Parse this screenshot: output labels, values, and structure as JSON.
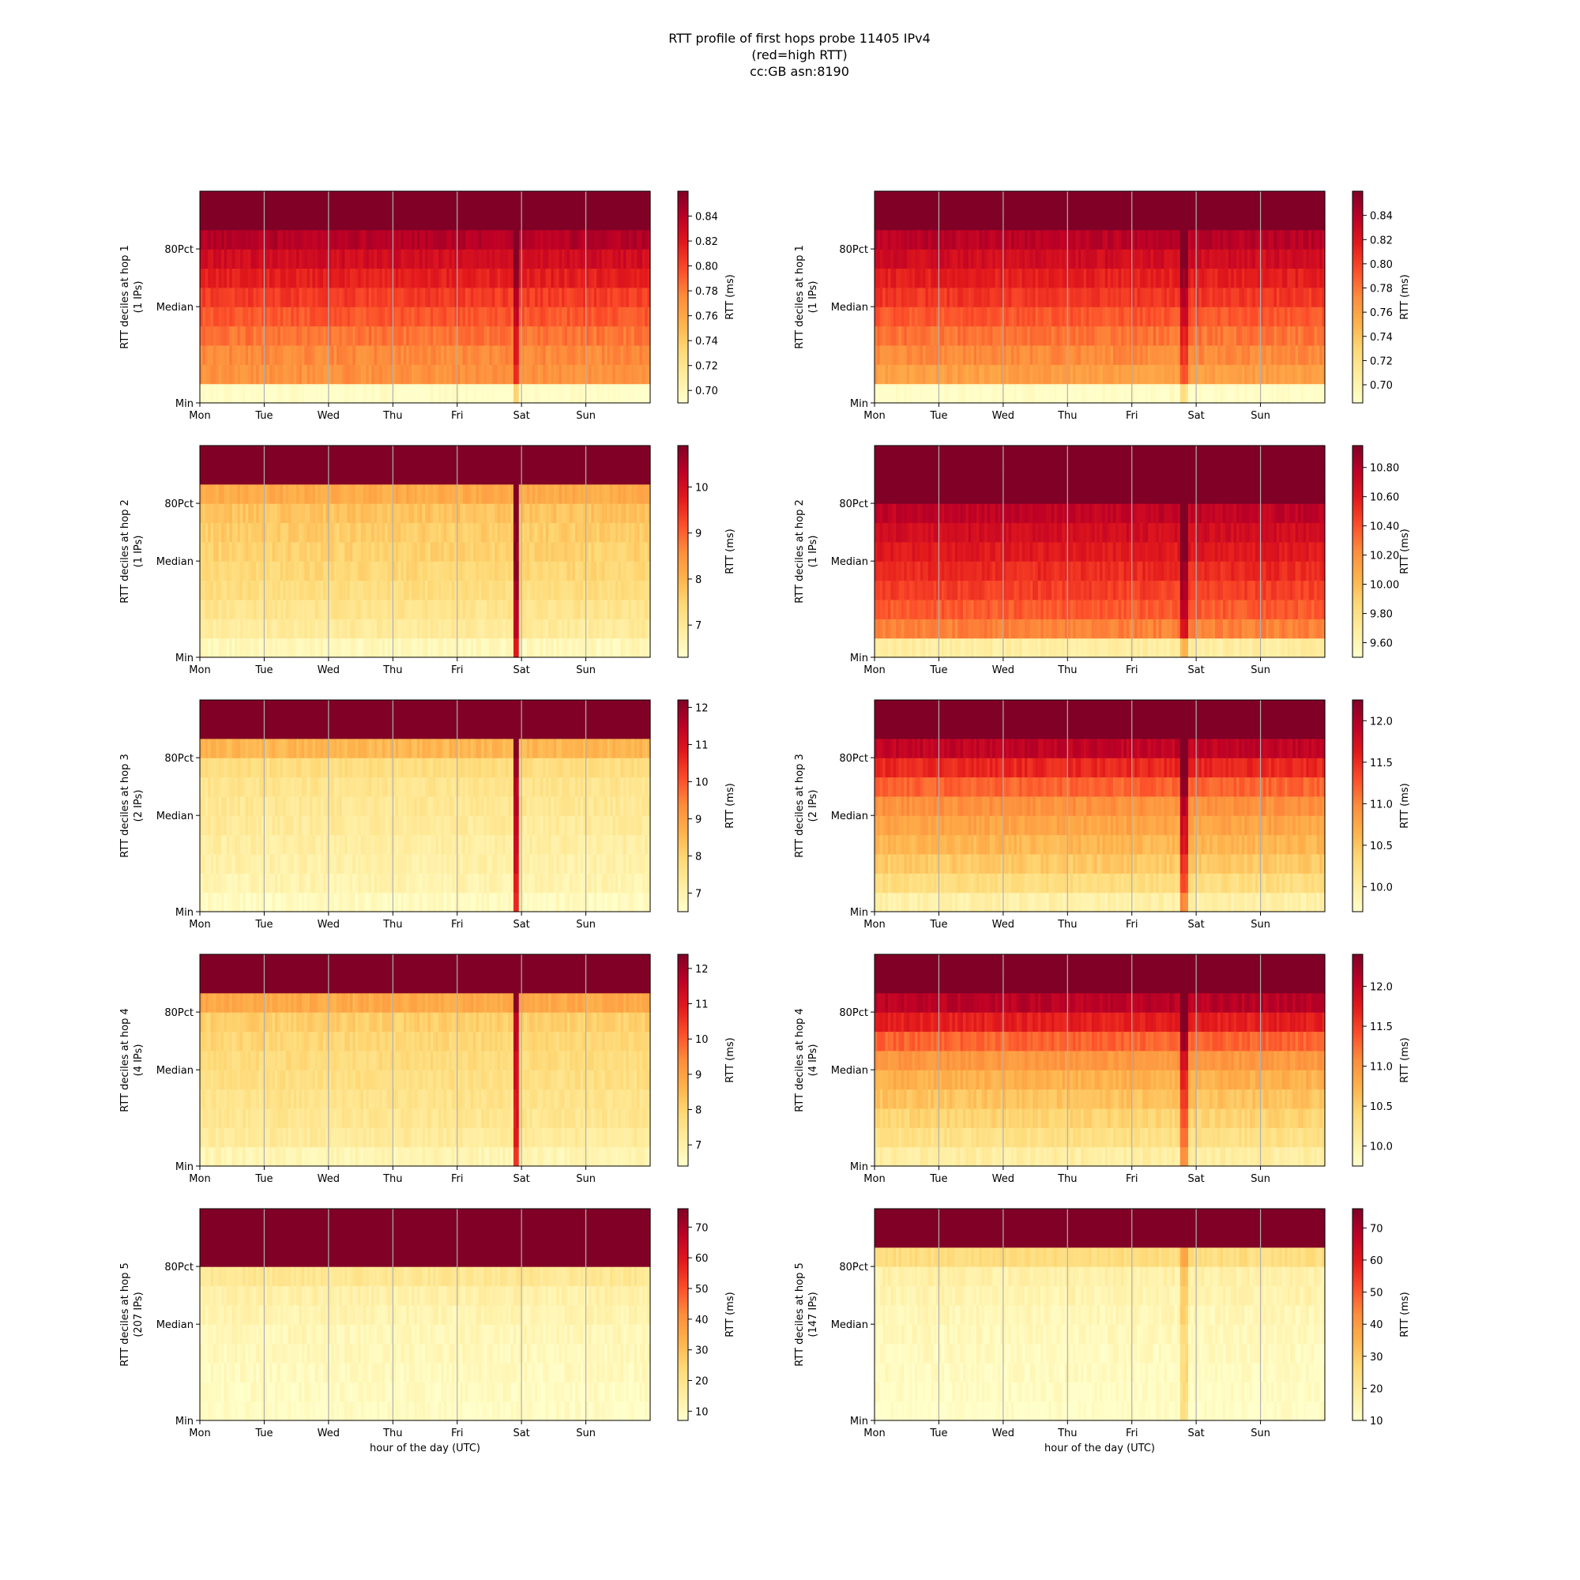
{
  "figure": {
    "title_lines": [
      "RTT profile of first hops probe 11405 IPv4",
      "(red=high RTT)",
      "cc:GB asn:8190"
    ]
  },
  "colors": {
    "scale": [
      "#ffffcc",
      "#ffeda0",
      "#fed976",
      "#feb24c",
      "#fd8d3c",
      "#fc4e2a",
      "#e31a1c",
      "#bd0026",
      "#800026"
    ],
    "gridline": "#b0b0b0",
    "axis": "#000000"
  },
  "chart_data": [
    {
      "type": "heatmap",
      "row": 0,
      "col": 0,
      "ylabel": [
        "RTT deciles at hop 1",
        "(1 IPs)"
      ],
      "xlabel": "",
      "x_ticks": [
        "Mon",
        "Tue",
        "Wed",
        "Thu",
        "Fri",
        "Sat",
        "Sun"
      ],
      "y_ticks": [
        "Min",
        "Median",
        "80Pct"
      ],
      "colorbar": {
        "label": "RTT (ms)",
        "range": [
          0.69,
          0.86
        ],
        "ticks": [
          0.7,
          0.72,
          0.74,
          0.76,
          0.78,
          0.8,
          0.82,
          0.84
        ]
      },
      "decile_levels": [
        0.0,
        0.48,
        0.5,
        0.55,
        0.61,
        0.67,
        0.74,
        0.81,
        0.89,
        1.0
      ],
      "spike": {
        "day": 4.9,
        "strength": 0.25
      }
    },
    {
      "type": "heatmap",
      "row": 0,
      "col": 1,
      "ylabel": [
        "RTT deciles at hop 1",
        "(1 IPs)"
      ],
      "xlabel": "",
      "x_ticks": [
        "Mon",
        "Tue",
        "Wed",
        "Thu",
        "Fri",
        "Sat",
        "Sun"
      ],
      "y_ticks": [
        "Min",
        "Median",
        "80Pct"
      ],
      "colorbar": {
        "label": "RTT (ms)",
        "range": [
          0.685,
          0.86
        ],
        "ticks": [
          0.7,
          0.72,
          0.74,
          0.76,
          0.78,
          0.8,
          0.82,
          0.84
        ]
      },
      "decile_levels": [
        0.0,
        0.44,
        0.5,
        0.55,
        0.61,
        0.68,
        0.74,
        0.81,
        0.88,
        1.0
      ],
      "spike": {
        "day": 4.8,
        "strength": 0.2
      }
    },
    {
      "type": "heatmap",
      "row": 1,
      "col": 0,
      "ylabel": [
        "RTT deciles at hop 2",
        "(1 IPs)"
      ],
      "xlabel": "",
      "x_ticks": [
        "Mon",
        "Tue",
        "Wed",
        "Thu",
        "Fri",
        "Sat",
        "Sun"
      ],
      "y_ticks": [
        "Min",
        "Median",
        "80Pct"
      ],
      "colorbar": {
        "label": "RTT (ms)",
        "range": [
          6.3,
          10.9
        ],
        "ticks": [
          7,
          8,
          9,
          10
        ]
      },
      "decile_levels": [
        0.05,
        0.14,
        0.18,
        0.22,
        0.25,
        0.27,
        0.29,
        0.32,
        0.4,
        1.0
      ],
      "spike": {
        "day": 4.9,
        "strength": 0.7
      }
    },
    {
      "type": "heatmap",
      "row": 1,
      "col": 1,
      "ylabel": [
        "RTT deciles at hop 2",
        "(1 IPs)"
      ],
      "xlabel": "",
      "x_ticks": [
        "Mon",
        "Tue",
        "Wed",
        "Thu",
        "Fri",
        "Sat",
        "Sun"
      ],
      "y_ticks": [
        "Min",
        "Median",
        "80Pct"
      ],
      "colorbar": {
        "label": "RTT (ms)",
        "range": [
          9.5,
          10.95
        ],
        "ticks": [
          9.6,
          9.8,
          10.0,
          10.2,
          10.4,
          10.6,
          10.8
        ]
      },
      "decile_levels": [
        0.12,
        0.52,
        0.6,
        0.66,
        0.71,
        0.76,
        0.81,
        0.86,
        1.0,
        1.0
      ],
      "spike": {
        "day": 4.8,
        "strength": 0.25
      }
    },
    {
      "type": "heatmap",
      "row": 2,
      "col": 0,
      "ylabel": [
        "RTT deciles at hop 3",
        "(2 IPs)"
      ],
      "xlabel": "",
      "x_ticks": [
        "Mon",
        "Tue",
        "Wed",
        "Thu",
        "Fri",
        "Sat",
        "Sun"
      ],
      "y_ticks": [
        "Min",
        "Median",
        "80Pct"
      ],
      "colorbar": {
        "label": "RTT (ms)",
        "range": [
          6.5,
          12.2
        ],
        "ticks": [
          7,
          8,
          9,
          10,
          11,
          12
        ]
      },
      "decile_levels": [
        0.03,
        0.08,
        0.1,
        0.12,
        0.14,
        0.16,
        0.18,
        0.22,
        0.36,
        1.0
      ],
      "spike": {
        "day": 4.9,
        "strength": 0.7
      }
    },
    {
      "type": "heatmap",
      "row": 2,
      "col": 1,
      "ylabel": [
        "RTT deciles at hop 3",
        "(2 IPs)"
      ],
      "xlabel": "",
      "x_ticks": [
        "Mon",
        "Tue",
        "Wed",
        "Thu",
        "Fri",
        "Sat",
        "Sun"
      ],
      "y_ticks": [
        "Min",
        "Median",
        "80Pct"
      ],
      "colorbar": {
        "label": "RTT (ms)",
        "range": [
          9.7,
          12.25
        ],
        "ticks": [
          10.0,
          10.5,
          11.0,
          11.5,
          12.0
        ]
      },
      "decile_levels": [
        0.1,
        0.22,
        0.3,
        0.36,
        0.42,
        0.48,
        0.58,
        0.72,
        0.86,
        1.0
      ],
      "spike": {
        "day": 4.8,
        "strength": 0.4
      }
    },
    {
      "type": "heatmap",
      "row": 3,
      "col": 0,
      "ylabel": [
        "RTT deciles at hop 4",
        "(4 IPs)"
      ],
      "xlabel": "",
      "x_ticks": [
        "Mon",
        "Tue",
        "Wed",
        "Thu",
        "Fri",
        "Sat",
        "Sun"
      ],
      "y_ticks": [
        "Min",
        "Median",
        "80Pct"
      ],
      "colorbar": {
        "label": "RTT (ms)",
        "range": [
          6.4,
          12.4
        ],
        "ticks": [
          7,
          8,
          9,
          10,
          11,
          12
        ]
      },
      "decile_levels": [
        0.07,
        0.14,
        0.17,
        0.19,
        0.21,
        0.23,
        0.25,
        0.28,
        0.4,
        1.0
      ],
      "spike": {
        "day": 4.9,
        "strength": 0.6
      }
    },
    {
      "type": "heatmap",
      "row": 3,
      "col": 1,
      "ylabel": [
        "RTT deciles at hop 4",
        "(4 IPs)"
      ],
      "xlabel": "",
      "x_ticks": [
        "Mon",
        "Tue",
        "Wed",
        "Thu",
        "Fri",
        "Sat",
        "Sun"
      ],
      "y_ticks": [
        "Min",
        "Median",
        "80Pct"
      ],
      "colorbar": {
        "label": "RTT (ms)",
        "range": [
          9.75,
          12.4
        ],
        "ticks": [
          10.0,
          10.5,
          11.0,
          11.5,
          12.0
        ]
      },
      "decile_levels": [
        0.12,
        0.2,
        0.26,
        0.32,
        0.38,
        0.46,
        0.58,
        0.74,
        0.88,
        1.0
      ],
      "spike": {
        "day": 4.8,
        "strength": 0.35
      }
    },
    {
      "type": "heatmap",
      "row": 4,
      "col": 0,
      "ylabel": [
        "RTT deciles at hop 5",
        "(207 IPs)"
      ],
      "xlabel": "hour of the day (UTC)",
      "x_ticks": [
        "Mon",
        "Tue",
        "Wed",
        "Thu",
        "Fri",
        "Sat",
        "Sun"
      ],
      "y_ticks": [
        "Min",
        "Median",
        "80Pct"
      ],
      "colorbar": {
        "label": "RTT (ms)",
        "range": [
          7,
          76
        ],
        "ticks": [
          10,
          20,
          30,
          40,
          50,
          60,
          70
        ]
      },
      "decile_levels": [
        0.02,
        0.03,
        0.04,
        0.05,
        0.06,
        0.08,
        0.1,
        0.16,
        1.0,
        1.0
      ],
      "spike": {
        "day": 0.3,
        "strength": 0.0
      }
    },
    {
      "type": "heatmap",
      "row": 4,
      "col": 1,
      "ylabel": [
        "RTT deciles at hop 5",
        "(147 IPs)"
      ],
      "xlabel": "hour of the day (UTC)",
      "x_ticks": [
        "Mon",
        "Tue",
        "Wed",
        "Thu",
        "Fri",
        "Sat",
        "Sun"
      ],
      "y_ticks": [
        "Min",
        "Median",
        "80Pct"
      ],
      "colorbar": {
        "label": "RTT (ms)",
        "range": [
          10,
          76
        ],
        "ticks": [
          10,
          20,
          30,
          40,
          50,
          60,
          70
        ]
      },
      "decile_levels": [
        0.01,
        0.02,
        0.03,
        0.04,
        0.05,
        0.06,
        0.08,
        0.1,
        0.22,
        1.0
      ],
      "spike": {
        "day": 4.8,
        "strength": 0.2
      }
    }
  ]
}
